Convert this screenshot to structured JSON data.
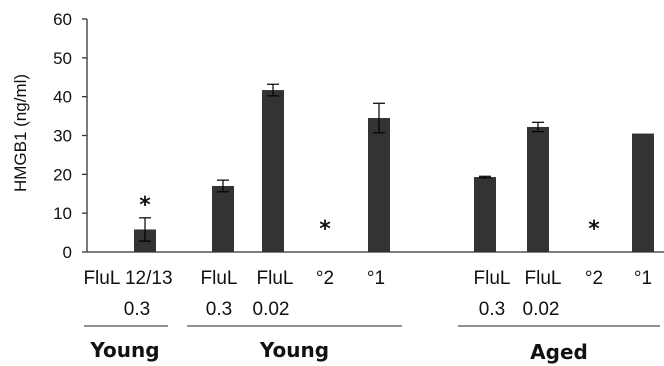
{
  "chart_data": {
    "type": "bar",
    "ylabel": "HMGB1 (ng/ml)",
    "ylim": [
      0,
      60
    ],
    "yticks": [
      "0",
      "10",
      "20",
      "30",
      "40",
      "50",
      "60"
    ],
    "grid": false,
    "bar_color": "#333333",
    "bars": [
      {
        "top": "FluL 12/13",
        "bottom": "0.3",
        "value": 5.8,
        "error": 3.0,
        "star": true
      },
      {
        "top": "FluL",
        "bottom": "0.3",
        "value": 17.0,
        "error": 1.5,
        "star": false
      },
      {
        "top": "FluL",
        "bottom": "0.02",
        "value": 41.7,
        "error": 1.5,
        "star": false
      },
      {
        "top": "°2",
        "bottom": "",
        "value": 0,
        "error": 0,
        "star": true
      },
      {
        "top": "°1",
        "bottom": "",
        "value": 34.5,
        "error": 3.8,
        "star": false
      },
      {
        "top": "FluL",
        "bottom": "0.3",
        "value": 19.3,
        "error": 0.2,
        "star": false
      },
      {
        "top": "FluL",
        "bottom": "0.02",
        "value": 32.2,
        "error": 1.2,
        "star": false
      },
      {
        "top": "°2",
        "bottom": "",
        "value": 0,
        "error": 0,
        "star": true
      },
      {
        "top": "°1",
        "bottom": "",
        "value": 30.5,
        "error": 0,
        "star": false
      }
    ],
    "star_symbol": "*",
    "groups": [
      "Young",
      "Young",
      "Aged"
    ]
  }
}
